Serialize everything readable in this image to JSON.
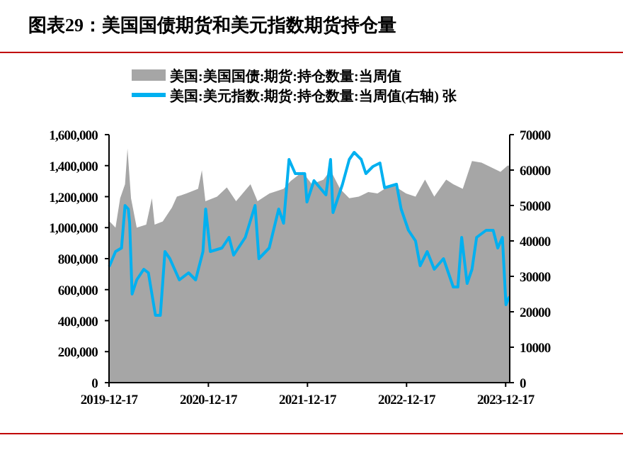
{
  "chart_data": {
    "type": "area",
    "title": "图表29：美国国债期货和美元指数期货持仓量",
    "legend": "top",
    "xlim": [
      "2019-12-17",
      "2024-01-01"
    ],
    "xticks": [
      "2019-12-17",
      "2020-12-17",
      "2021-12-17",
      "2022-12-17",
      "2023-12-17"
    ],
    "ylim": [
      0,
      1600000
    ],
    "yticks": [
      {
        "value": 0,
        "label": "0"
      },
      {
        "value": 200000,
        "label": "200,000"
      },
      {
        "value": 400000,
        "label": "400,000"
      },
      {
        "value": 600000,
        "label": "600,000"
      },
      {
        "value": 800000,
        "label": "800,000"
      },
      {
        "value": 1000000,
        "label": "1,000,000"
      },
      {
        "value": 1200000,
        "label": "1,200,000"
      },
      {
        "value": 1400000,
        "label": "1,400,000"
      },
      {
        "value": 1600000,
        "label": "1,600,000"
      }
    ],
    "y2lim": [
      0,
      70000
    ],
    "y2ticks": [
      0,
      10000,
      20000,
      30000,
      40000,
      50000,
      60000,
      70000
    ],
    "series": [
      {
        "name": "美国:美国国债:期货:持仓数量:当周值",
        "color": "#a6a6a6",
        "x": [
          "2019-12-19",
          "2020-01-10",
          "2020-01-27",
          "2020-02-14",
          "2020-02-23",
          "2020-03-07",
          "2020-03-28",
          "2020-05-02",
          "2020-05-23",
          "2020-06-02",
          "2020-07-02",
          "2020-08-05",
          "2020-08-23",
          "2020-09-27",
          "2020-11-09",
          "2020-11-23",
          "2020-12-06",
          "2021-01-18",
          "2021-02-23",
          "2021-03-29",
          "2021-05-21",
          "2021-06-16",
          "2021-07-30",
          "2021-09-20",
          "2021-10-16",
          "2021-11-29",
          "2022-01-02",
          "2022-02-14",
          "2022-03-12",
          "2022-04-16",
          "2022-05-20",
          "2022-06-24",
          "2022-07-29",
          "2022-09-01",
          "2022-10-23",
          "2022-12-15",
          "2023-01-19",
          "2023-02-23",
          "2023-03-29",
          "2023-05-12",
          "2023-06-07",
          "2023-07-12",
          "2023-08-15",
          "2023-09-19",
          "2023-10-24",
          "2023-11-28",
          "2023-12-24"
        ],
        "values": [
          1040000,
          1000000,
          1190000,
          1280000,
          1510000,
          1190000,
          1000000,
          1020000,
          1190000,
          1020000,
          1040000,
          1130000,
          1200000,
          1220000,
          1250000,
          1370000,
          1170000,
          1200000,
          1260000,
          1170000,
          1280000,
          1170000,
          1220000,
          1250000,
          1300000,
          1360000,
          1280000,
          1310000,
          1370000,
          1250000,
          1190000,
          1200000,
          1230000,
          1220000,
          1280000,
          1220000,
          1200000,
          1310000,
          1200000,
          1310000,
          1280000,
          1250000,
          1430000,
          1420000,
          1390000,
          1360000,
          1400000
        ]
      },
      {
        "name": "美国:美元指数:期货:持仓数量:当周值(右轴) 张",
        "type": "line",
        "axis": "y2",
        "color": "#00b0f0",
        "x": [
          "2019-12-19",
          "2020-01-10",
          "2020-02-01",
          "2020-02-14",
          "2020-02-26",
          "2020-03-02",
          "2020-03-11",
          "2020-03-28",
          "2020-04-23",
          "2020-05-10",
          "2020-06-05",
          "2020-06-23",
          "2020-07-10",
          "2020-07-28",
          "2020-09-01",
          "2020-10-05",
          "2020-10-31",
          "2020-11-27",
          "2020-12-07",
          "2020-12-24",
          "2021-02-05",
          "2021-03-03",
          "2021-03-20",
          "2021-05-02",
          "2021-06-07",
          "2021-06-21",
          "2021-07-29",
          "2021-09-02",
          "2021-09-20",
          "2021-10-10",
          "2021-11-02",
          "2021-12-07",
          "2021-12-15",
          "2022-01-10",
          "2022-02-23",
          "2022-03-12",
          "2022-03-21",
          "2022-04-25",
          "2022-05-20",
          "2022-06-07",
          "2022-07-03",
          "2022-07-20",
          "2022-08-15",
          "2022-09-10",
          "2022-09-27",
          "2022-11-10",
          "2022-11-27",
          "2022-12-24",
          "2023-01-19",
          "2023-02-05",
          "2023-03-03",
          "2023-03-29",
          "2023-05-02",
          "2023-06-07",
          "2023-06-24",
          "2023-07-08",
          "2023-07-28",
          "2023-08-15",
          "2023-09-01",
          "2023-10-06",
          "2023-11-01",
          "2023-11-18",
          "2023-12-05",
          "2023-12-18",
          "2023-12-29"
        ],
        "values": [
          33000,
          37000,
          38000,
          50000,
          49000,
          45000,
          25000,
          29000,
          32000,
          31000,
          19000,
          19000,
          37000,
          35000,
          29000,
          31000,
          29000,
          37000,
          49000,
          37000,
          38000,
          41000,
          36000,
          41000,
          50000,
          35000,
          38000,
          49000,
          45000,
          63000,
          59000,
          59000,
          51000,
          57000,
          53000,
          63000,
          48000,
          56000,
          63000,
          65000,
          63000,
          59000,
          61000,
          62000,
          55000,
          56000,
          49000,
          43000,
          40000,
          33000,
          37000,
          32000,
          35000,
          27000,
          27000,
          41000,
          28000,
          32000,
          41000,
          43000,
          43000,
          38000,
          41000,
          22000,
          24000
        ]
      }
    ]
  }
}
